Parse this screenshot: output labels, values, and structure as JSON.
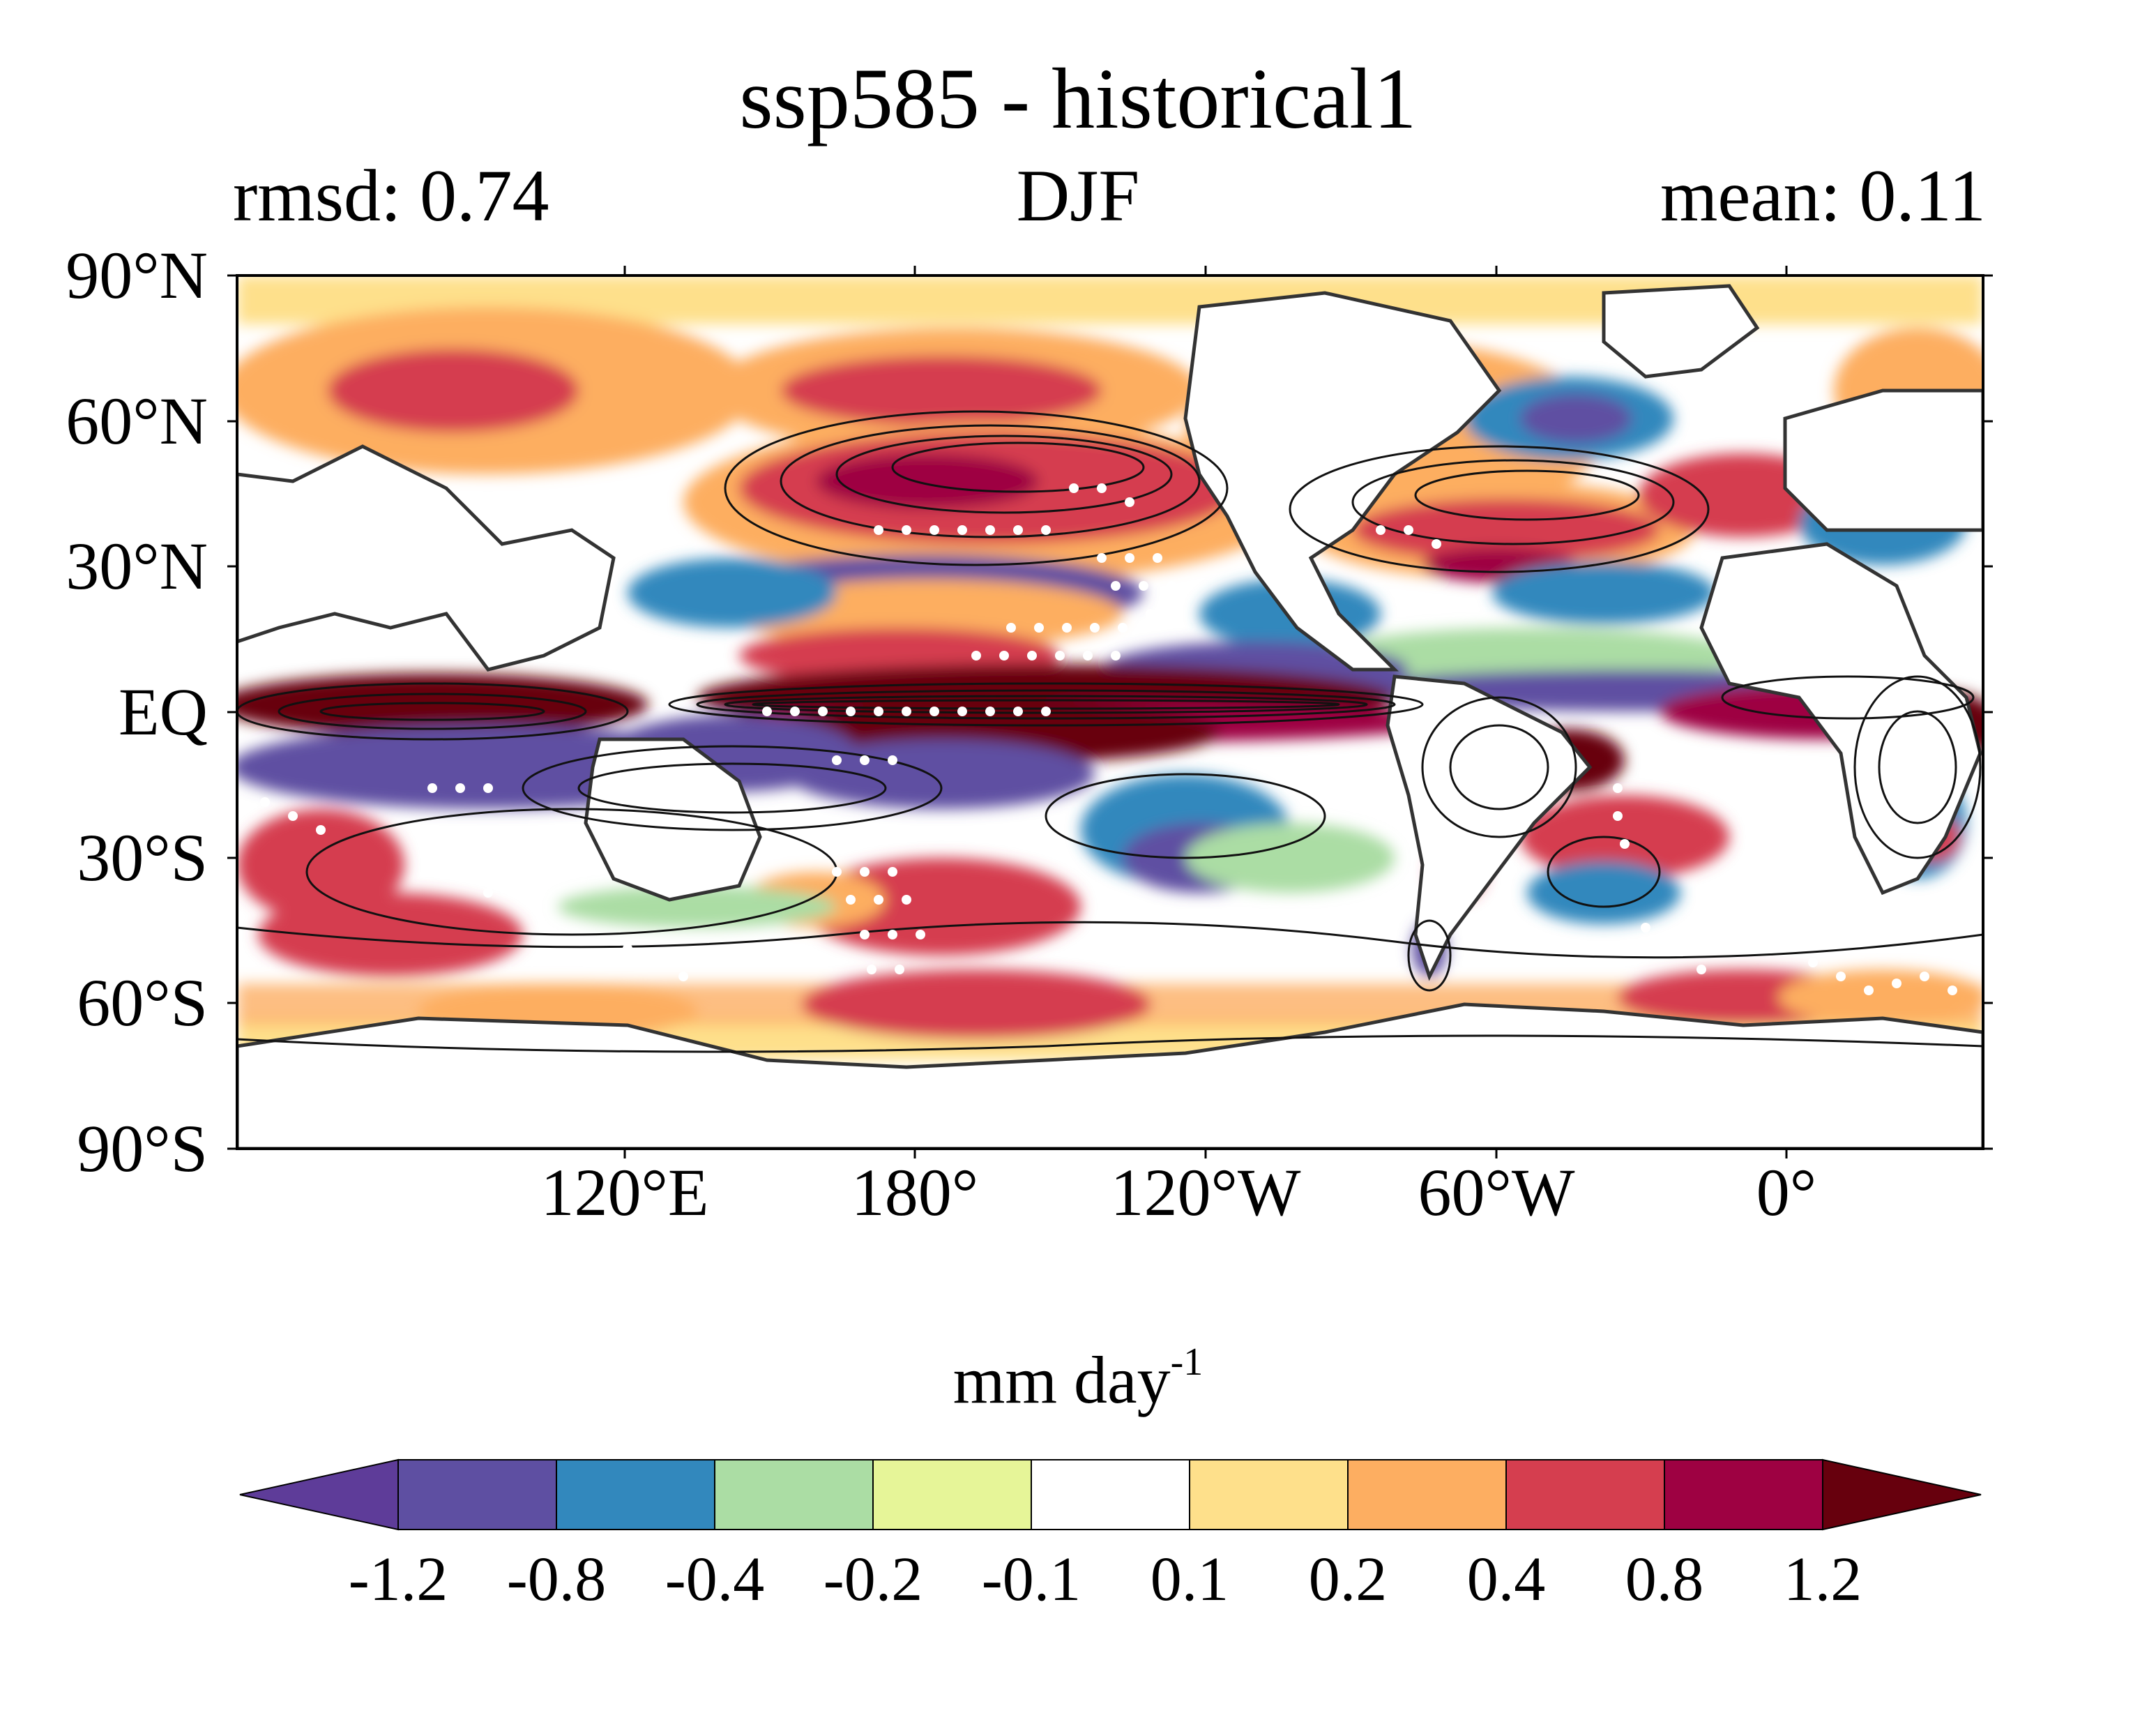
{
  "title": "ssp585 - historical1",
  "subtitle": {
    "left": "rmsd: 0.74",
    "center": "DJF",
    "right": "mean: 0.11"
  },
  "axes": {
    "lat_ticks": [
      "90°N",
      "60°N",
      "30°N",
      "EQ",
      "30°S",
      "60°S",
      "90°S"
    ],
    "lon_ticks": [
      "120°E",
      "180°",
      "120°W",
      "60°W",
      "0°"
    ]
  },
  "colorbar": {
    "units": "mm day",
    "units_superscript": "-1",
    "tick_labels": [
      "-1.2",
      "-0.8",
      "-0.4",
      "-0.2",
      "-0.1",
      "0.1",
      "0.2",
      "0.4",
      "0.8",
      "1.2"
    ],
    "colors": [
      "#5e3c99",
      "#5e4fa2",
      "#3288bd",
      "#abdda4",
      "#e6f598",
      "#ffffff",
      "#fee08b",
      "#fdae61",
      "#d53e4f",
      "#9e0142",
      "#67000d"
    ]
  }
}
